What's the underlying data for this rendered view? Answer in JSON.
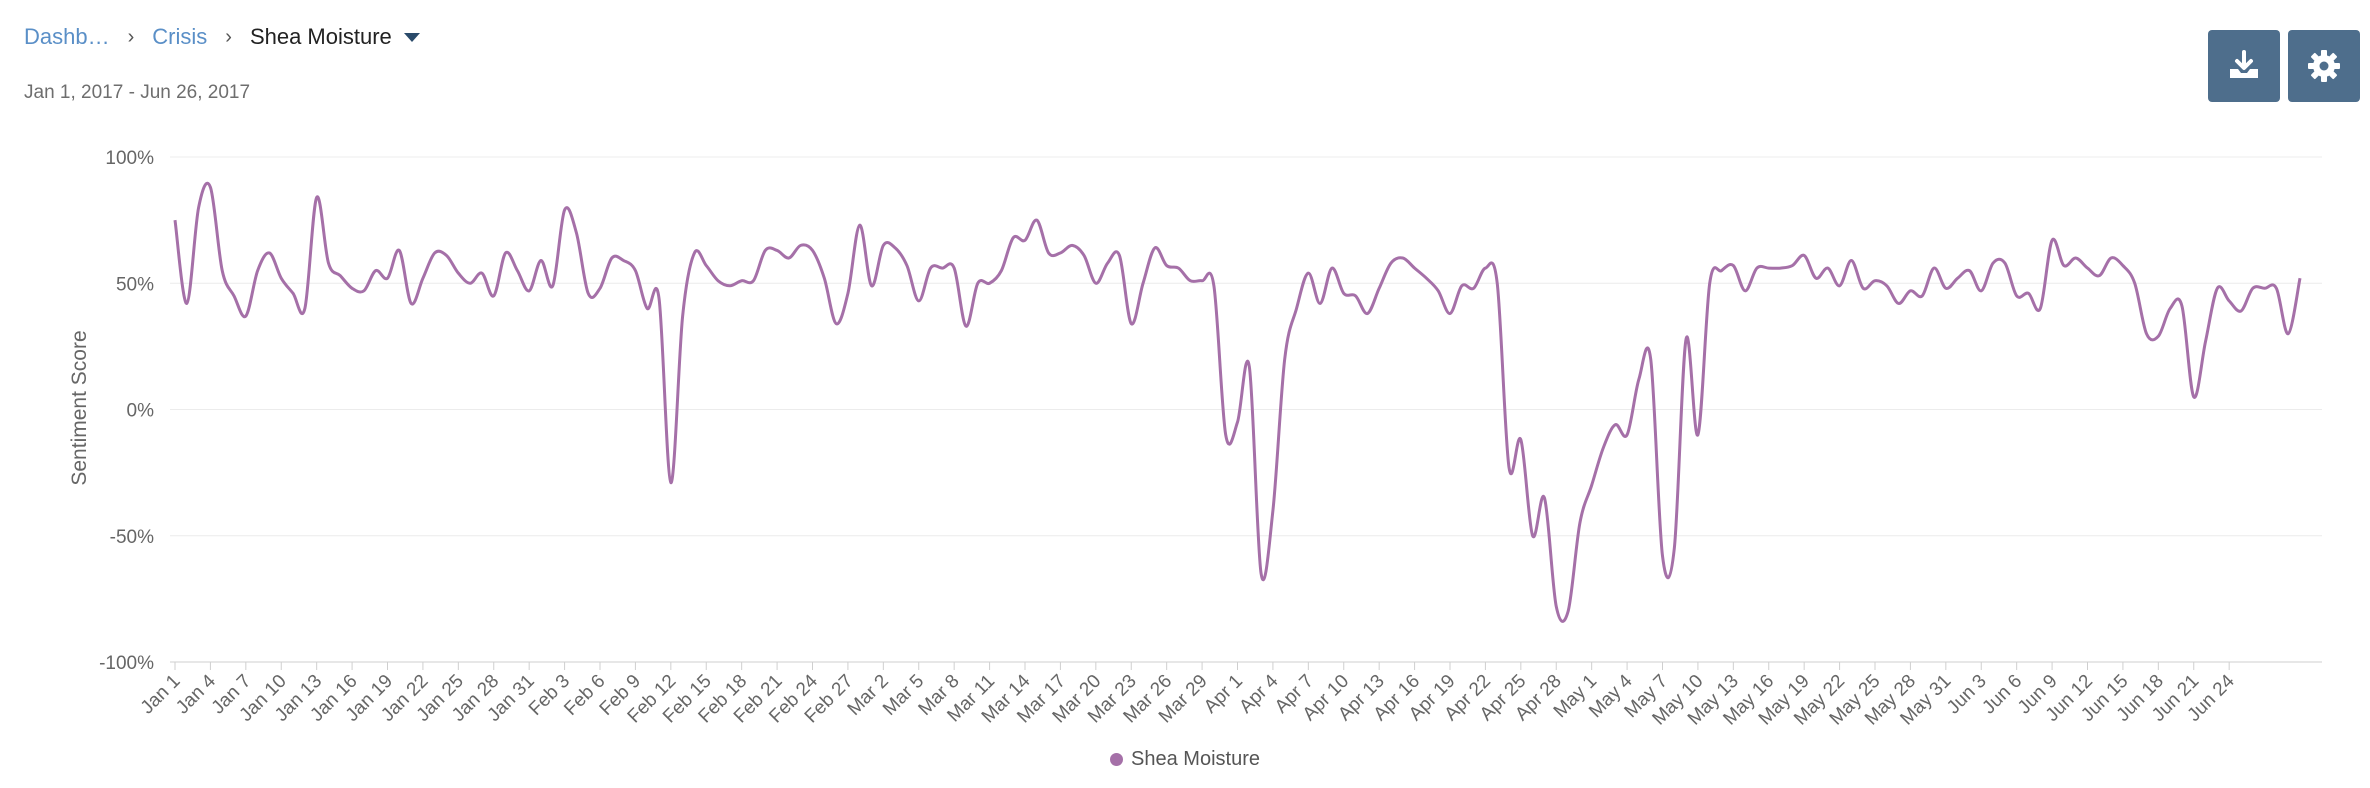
{
  "breadcrumb": {
    "items": [
      "Dashb…",
      "Crisis"
    ],
    "current": "Shea Moisture"
  },
  "date_range": "Jan 1, 2017 - Jun 26, 2017",
  "toolbar": {
    "download_icon": "download-tray-icon",
    "settings_icon": "gear-icon"
  },
  "colors": {
    "series": "#a570a8",
    "button": "#4e6e8c",
    "link": "#5a8fc7"
  },
  "chart_data": {
    "type": "line",
    "title": "",
    "ylabel": "Sentiment Score",
    "xlabel": "",
    "ylim": [
      -100,
      100
    ],
    "yticks": [
      "100%",
      "50%",
      "0%",
      "-50%",
      "-100%"
    ],
    "ytick_values": [
      100,
      50,
      0,
      -50,
      -100
    ],
    "x_tick_labels": [
      "Jan 1",
      "Jan 4",
      "Jan 7",
      "Jan 10",
      "Jan 13",
      "Jan 16",
      "Jan 19",
      "Jan 22",
      "Jan 25",
      "Jan 28",
      "Jan 31",
      "Feb 3",
      "Feb 6",
      "Feb 9",
      "Feb 12",
      "Feb 15",
      "Feb 18",
      "Feb 21",
      "Feb 24",
      "Feb 27",
      "Mar 2",
      "Mar 5",
      "Mar 8",
      "Mar 11",
      "Mar 14",
      "Mar 17",
      "Mar 20",
      "Mar 23",
      "Mar 26",
      "Mar 29",
      "Apr 1",
      "Apr 4",
      "Apr 7",
      "Apr 10",
      "Apr 13",
      "Apr 16",
      "Apr 19",
      "Apr 22",
      "Apr 25",
      "Apr 28",
      "May 1",
      "May 4",
      "May 7",
      "May 10",
      "May 13",
      "May 16",
      "May 19",
      "May 22",
      "May 25",
      "May 28",
      "May 31",
      "Jun 3",
      "Jun 6",
      "Jun 9",
      "Jun 12",
      "Jun 15",
      "Jun 18",
      "Jun 21",
      "Jun 24"
    ],
    "legend_position": "bottom-center",
    "grid": true,
    "series": [
      {
        "name": "Shea Moisture",
        "color": "#a570a8",
        "values": [
          75,
          42,
          80,
          88,
          55,
          45,
          37,
          55,
          62,
          52,
          46,
          40,
          84,
          58,
          53,
          48,
          47,
          55,
          52,
          63,
          42,
          52,
          62,
          61,
          54,
          50,
          54,
          45,
          62,
          55,
          47,
          59,
          49,
          79,
          70,
          46,
          48,
          60,
          59,
          55,
          40,
          44,
          -29,
          37,
          62,
          57,
          51,
          49,
          51,
          51,
          63,
          63,
          60,
          65,
          63,
          52,
          34,
          46,
          73,
          49,
          65,
          64,
          57,
          43,
          56,
          56,
          56,
          33,
          50,
          50,
          55,
          68,
          67,
          75,
          62,
          62,
          65,
          61,
          50,
          58,
          61,
          34,
          50,
          64,
          57,
          56,
          51,
          51,
          49,
          -10,
          -5,
          17,
          -65,
          -40,
          20,
          40,
          54,
          42,
          56,
          46,
          45,
          38,
          48,
          58,
          60,
          56,
          52,
          47,
          38,
          49,
          48,
          56,
          50,
          -23,
          -12,
          -50,
          -35,
          -78,
          -80,
          -45,
          -30,
          -15,
          -6,
          -10,
          12,
          20,
          -58,
          -55,
          28,
          -10,
          50,
          55,
          57,
          47,
          56,
          56,
          56,
          57,
          61,
          52,
          56,
          49,
          59,
          48,
          51,
          49,
          42,
          47,
          45,
          56,
          48,
          52,
          55,
          47,
          58,
          58,
          45,
          46,
          40,
          67,
          57,
          60,
          56,
          53,
          60,
          57,
          50,
          30,
          29,
          40,
          41,
          5,
          27,
          48,
          43,
          39,
          48,
          48,
          48,
          30,
          52
        ]
      }
    ]
  }
}
